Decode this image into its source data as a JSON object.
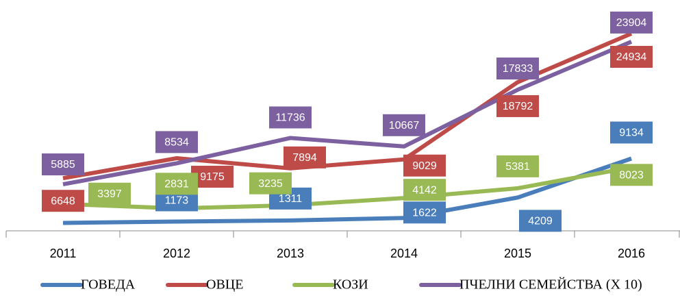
{
  "chart_data": {
    "type": "line",
    "categories": [
      "2011",
      "2012",
      "2013",
      "2014",
      "2015",
      "2016"
    ],
    "series": [
      {
        "name": "ГОВЕДА",
        "color": "#4a7ebb",
        "values": [
          1000,
          1173,
          1311,
          1622,
          4209,
          9134
        ],
        "value_labels": [
          null,
          "1173",
          "1311",
          "1622",
          "4209",
          "9134"
        ]
      },
      {
        "name": "ОВЦЕ",
        "color": "#be4b48",
        "values": [
          6648,
          9175,
          7894,
          9029,
          18792,
          24934
        ]
      },
      {
        "name": "КОЗИ",
        "color": "#98b954",
        "values": [
          3397,
          2831,
          3235,
          4142,
          5381,
          8023
        ]
      },
      {
        "name": "ПЧЕЛНИ СЕМЕЙСТВА (X 10)",
        "color": "#7d60a0",
        "values": [
          5885,
          8534,
          11736,
          10667,
          17833,
          23904
        ]
      }
    ],
    "legend": "bottom"
  }
}
